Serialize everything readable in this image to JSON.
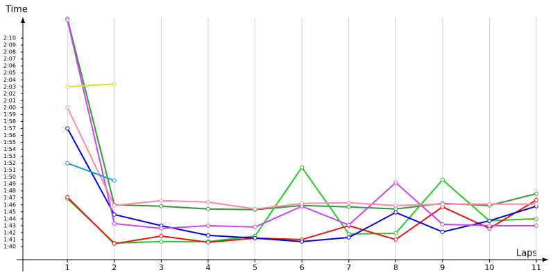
{
  "chart_data": {
    "type": "line",
    "y_label": "Time",
    "x_label": "Laps",
    "x": [
      1,
      2,
      3,
      4,
      5,
      6,
      7,
      8,
      9,
      10,
      11
    ],
    "xlim": [
      0.05,
      11.25
    ],
    "xticks": [
      1,
      2,
      3,
      4,
      5,
      6,
      7,
      8,
      9,
      10,
      11
    ],
    "ylim": [
      98.1,
      133
    ],
    "yticks": [
      {
        "value": 100,
        "label": "1:40"
      },
      {
        "value": 101,
        "label": "1:41"
      },
      {
        "value": 102,
        "label": "1:42"
      },
      {
        "value": 103,
        "label": "1:43"
      },
      {
        "value": 104,
        "label": "1:44"
      },
      {
        "value": 105,
        "label": "1:45"
      },
      {
        "value": 106,
        "label": "1:46"
      },
      {
        "value": 107,
        "label": "1:47"
      },
      {
        "value": 108,
        "label": "1:48"
      },
      {
        "value": 109,
        "label": "1:49"
      },
      {
        "value": 110,
        "label": "1:50"
      },
      {
        "value": 111,
        "label": "1:51"
      },
      {
        "value": 112,
        "label": "1:52"
      },
      {
        "value": 113,
        "label": "1:53"
      },
      {
        "value": 114,
        "label": "1:54"
      },
      {
        "value": 115,
        "label": "1:55"
      },
      {
        "value": 116,
        "label": "1:56"
      },
      {
        "value": 117,
        "label": "1:57"
      },
      {
        "value": 118,
        "label": "1:58"
      },
      {
        "value": 119,
        "label": "1:59"
      },
      {
        "value": 120,
        "label": "2:00"
      },
      {
        "value": 121,
        "label": "2:01"
      },
      {
        "value": 122,
        "label": "2:02"
      },
      {
        "value": 123,
        "label": "2:03"
      },
      {
        "value": 124,
        "label": "2:04"
      },
      {
        "value": 125,
        "label": "2:05"
      },
      {
        "value": 126,
        "label": "2:06"
      },
      {
        "value": 127,
        "label": "2:07"
      },
      {
        "value": 128,
        "label": "2:08"
      },
      {
        "value": 129,
        "label": "2:09"
      },
      {
        "value": 130,
        "label": "2:10"
      }
    ],
    "grid": "x",
    "series": [
      {
        "color": "#339933",
        "values": [
          132.8,
          106.0,
          105.8,
          105.4,
          105.3,
          105.9,
          105.7,
          105.4,
          106.2,
          105.9,
          107.6
        ]
      },
      {
        "color": "#22cc22",
        "values": [
          106.9,
          100.5,
          100.7,
          100.7,
          101.5,
          111.4,
          101.8,
          101.9,
          109.6,
          103.7,
          104.0
        ]
      },
      {
        "color": "#ee1111",
        "values": [
          107.1,
          100.4,
          101.5,
          100.6,
          101.2,
          101.0,
          103.0,
          101.0,
          105.7,
          102.6,
          106.7
        ]
      },
      {
        "color": "#0000dd",
        "values": [
          117.0,
          104.6,
          103.0,
          101.6,
          101.2,
          100.7,
          101.3,
          104.9,
          102.1,
          103.7,
          105.8
        ]
      },
      {
        "color": "#cc44ee",
        "values": [
          132.6,
          103.3,
          102.6,
          103.0,
          102.8,
          105.8,
          103.1,
          109.2,
          103.2,
          103.0,
          103.0
        ]
      },
      {
        "color": "#ff88aa",
        "values": [
          120.0,
          105.9,
          106.6,
          106.4,
          105.4,
          106.2,
          106.3,
          105.9,
          106.1,
          106.1,
          106.1
        ]
      },
      {
        "color": "#dddd22",
        "values": [
          123.0,
          123.4,
          null,
          null,
          null,
          null,
          null,
          null,
          null,
          null,
          null
        ]
      },
      {
        "color": "#1199ee",
        "values": [
          112.0,
          109.5,
          null,
          null,
          null,
          null,
          null,
          null,
          null,
          null,
          null
        ]
      }
    ]
  }
}
